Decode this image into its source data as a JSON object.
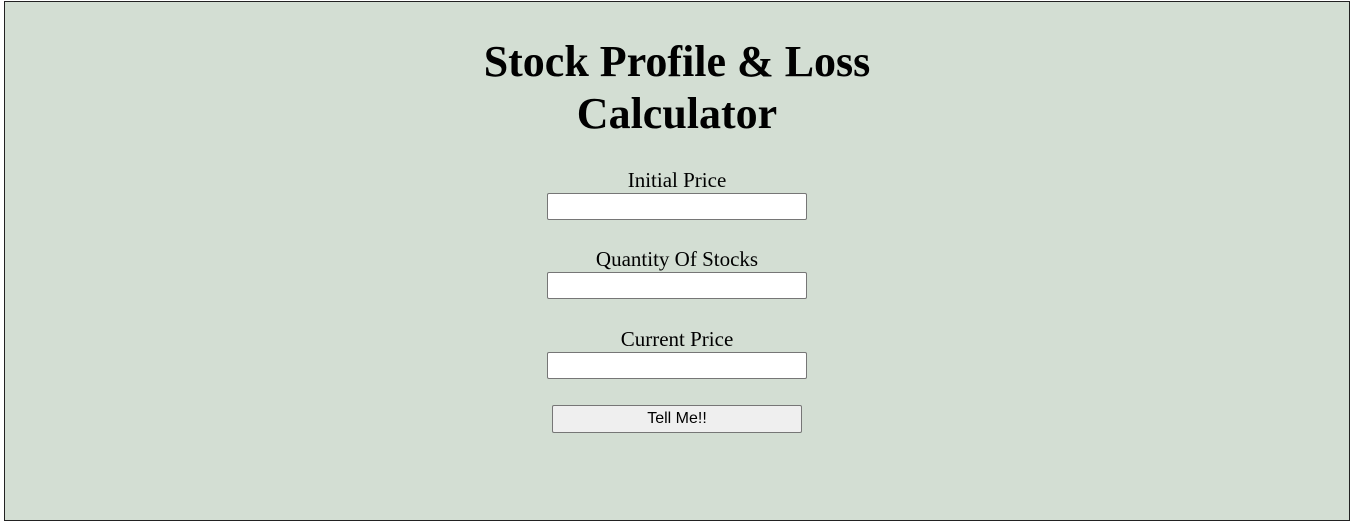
{
  "page": {
    "title_line1": "Stock Profile & Loss",
    "title_line2": "Calculator"
  },
  "form": {
    "initial_price": {
      "label": "Initial Price",
      "value": ""
    },
    "quantity": {
      "label": "Quantity Of Stocks",
      "value": ""
    },
    "current_price": {
      "label": "Current Price",
      "value": ""
    },
    "submit_label": "Tell Me!!"
  },
  "colors": {
    "background": "#d3ded3",
    "frame_border": "#222222",
    "button_background": "#efefef"
  }
}
